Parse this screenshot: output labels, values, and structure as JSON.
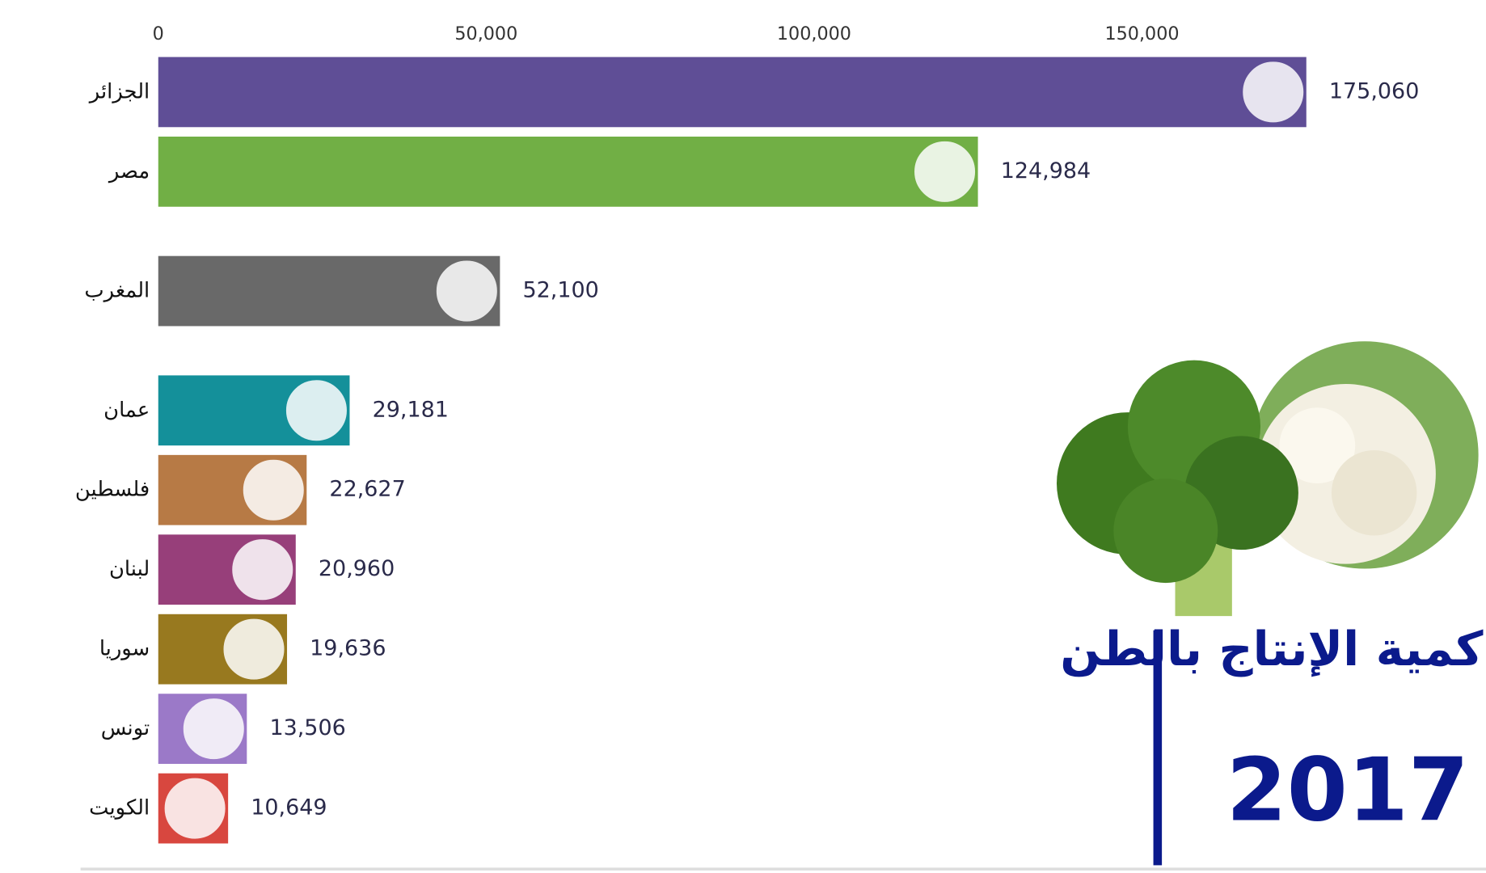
{
  "chart_data": {
    "type": "bar",
    "orientation": "horizontal",
    "title": "كمية الإنتاج بالطن",
    "subtitle": "2017",
    "categories": [
      "الجزائر",
      "مصر",
      "المغرب",
      "عمان",
      "فلسطين",
      "لبنان",
      "سوريا",
      "تونس",
      "الكويت"
    ],
    "values": [
      175060,
      124984,
      52100,
      29181,
      22627,
      20960,
      19636,
      13506,
      10649
    ],
    "value_labels": [
      "175,060",
      "124,984",
      "52,100",
      "29,181",
      "22,627",
      "20,960",
      "19,636",
      "13,506",
      "10,649"
    ],
    "colors": [
      "#5f4e96",
      "#71af45",
      "#696969",
      "#14909a",
      "#b77a45",
      "#973f7a",
      "#98791f",
      "#9b79c8",
      "#d8473f"
    ],
    "xlim": [
      0,
      200000
    ],
    "xticks": [
      0,
      {
        "value": 50000,
        "label": "50,000"
      },
      {
        "value": 100000,
        "label": "100,000"
      },
      {
        "value": 150000,
        "label": "150,000"
      }
    ]
  }
}
